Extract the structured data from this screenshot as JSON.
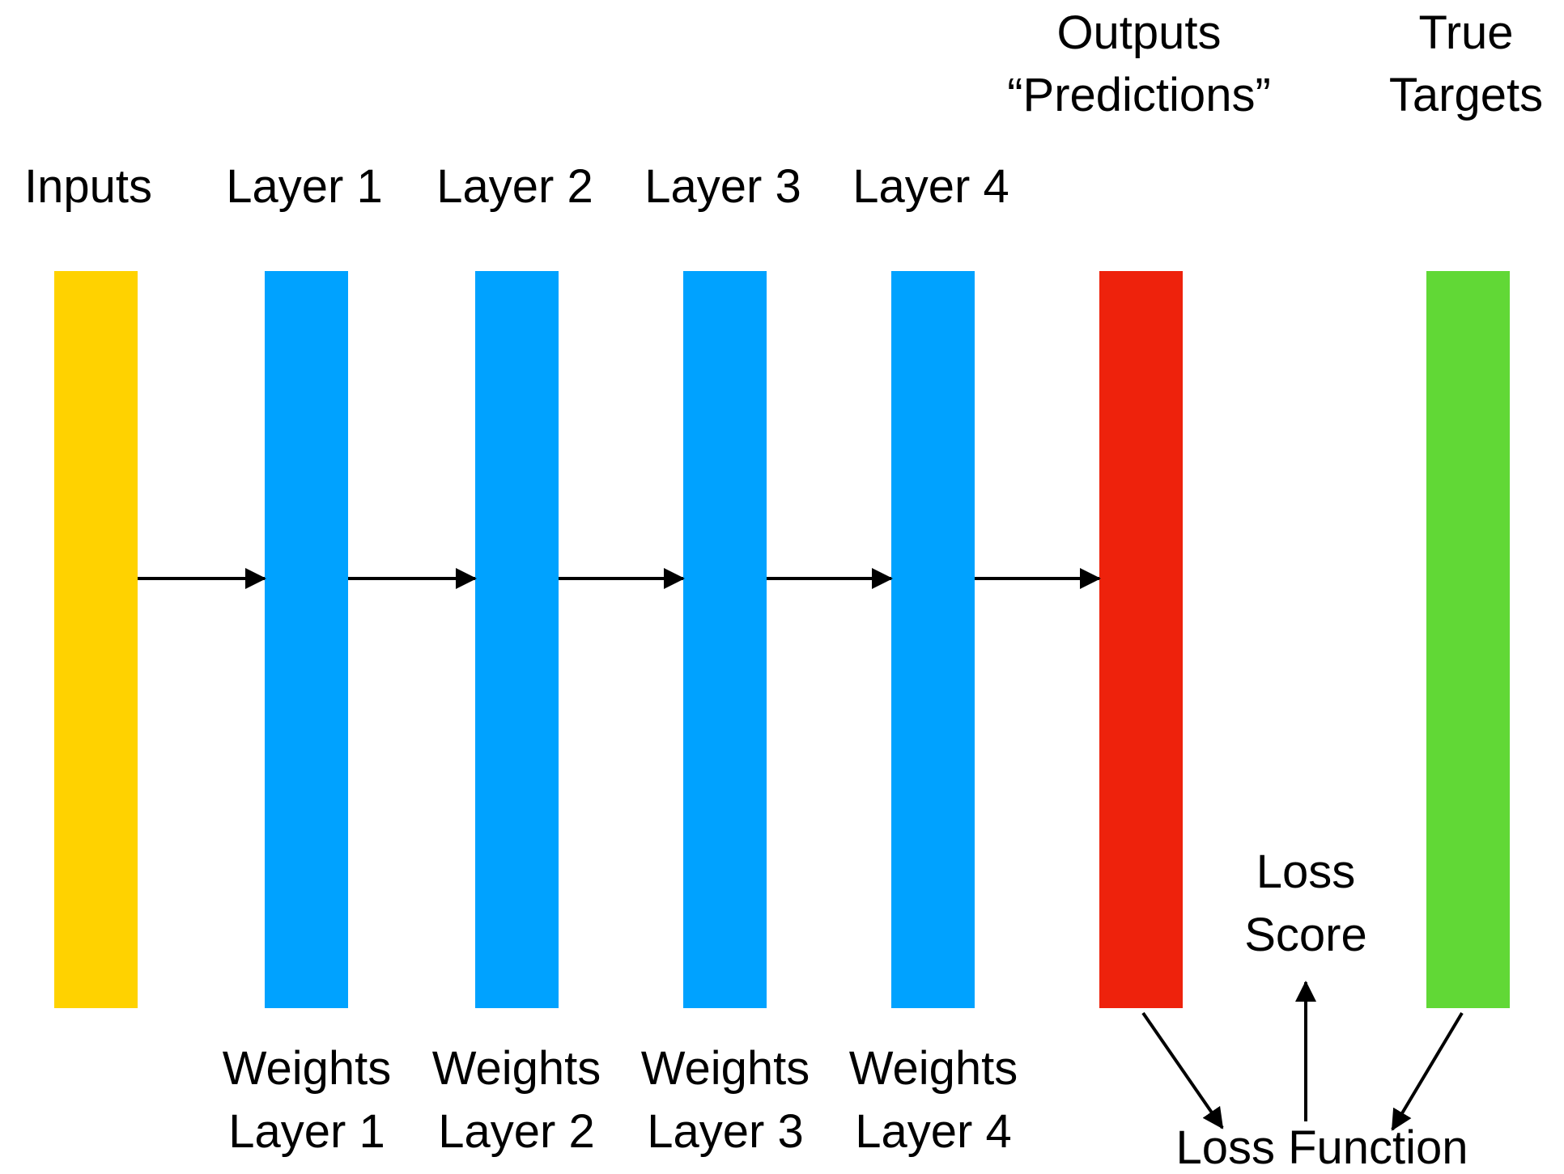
{
  "colors": {
    "inputs": "#FFD200",
    "hidden": "#00A2FF",
    "outputs": "#EE220C",
    "targets": "#61D836",
    "arrow": "#000000",
    "text": "#000000"
  },
  "top_labels": {
    "inputs": "Inputs",
    "layer1": "Layer 1",
    "layer2": "Layer 2",
    "layer3": "Layer 3",
    "layer4": "Layer 4",
    "outputs_line1": "Outputs",
    "outputs_line2": "“Predictions”",
    "targets_line1": "True",
    "targets_line2": "Targets"
  },
  "bottom_labels": {
    "w1_line1": "Weights",
    "w1_line2": "Layer 1",
    "w2_line1": "Weights",
    "w2_line2": "Layer 2",
    "w3_line1": "Weights",
    "w3_line2": "Layer 3",
    "w4_line1": "Weights",
    "w4_line2": "Layer 4"
  },
  "loss": {
    "score_line1": "Loss",
    "score_line2": "Score",
    "function": "Loss Function"
  }
}
